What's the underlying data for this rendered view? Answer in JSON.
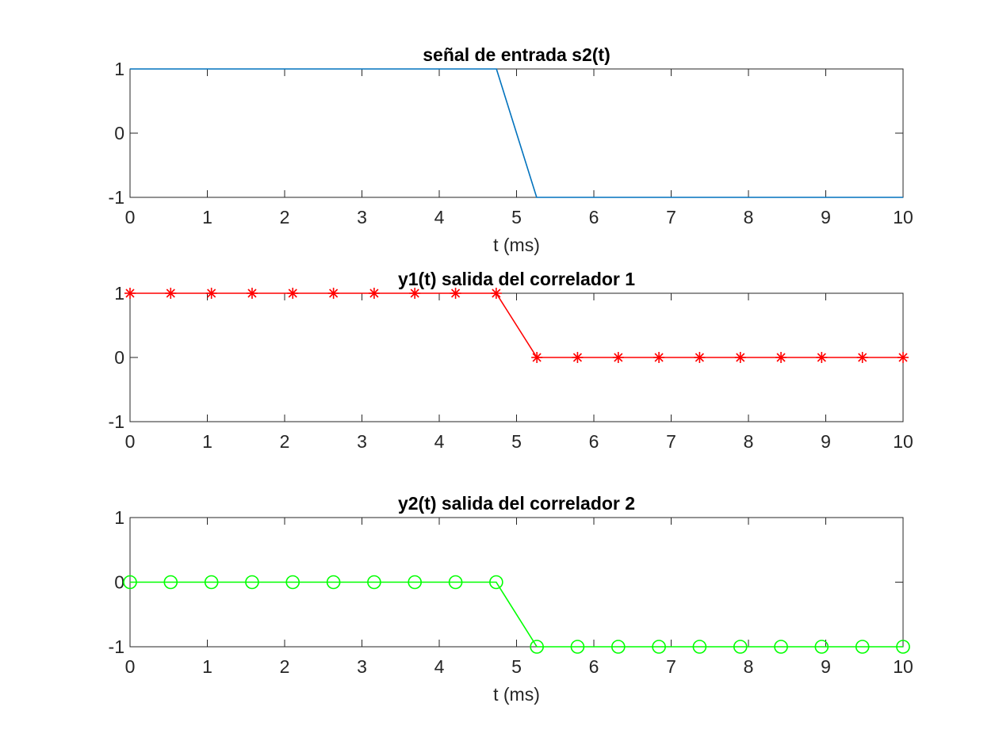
{
  "chart_data": [
    {
      "type": "line",
      "title": "señal de entrada s2(t)",
      "xlabel": "t (ms)",
      "ylabel": "",
      "xlim": [
        0,
        10
      ],
      "ylim": [
        -1,
        1
      ],
      "xticks": [
        "0",
        "1",
        "2",
        "3",
        "4",
        "5",
        "6",
        "7",
        "8",
        "9",
        "10"
      ],
      "yticks": [
        "-1",
        "0",
        "1"
      ],
      "grid": false,
      "series": [
        {
          "color": "#0072BD",
          "marker": "none",
          "x": [
            0,
            4.74,
            5.26,
            10
          ],
          "y": [
            1,
            1,
            -1,
            -1
          ]
        }
      ]
    },
    {
      "type": "line",
      "title": "y1(t) salida del correlador 1",
      "xlabel": "",
      "ylabel": "",
      "xlim": [
        0,
        10
      ],
      "ylim": [
        -1,
        1
      ],
      "xticks": [
        "0",
        "1",
        "2",
        "3",
        "4",
        "5",
        "6",
        "7",
        "8",
        "9",
        "10"
      ],
      "yticks": [
        "-1",
        "0",
        "1"
      ],
      "grid": false,
      "series": [
        {
          "color": "#FF0000",
          "marker": "asterisk",
          "x": [
            0,
            0.526,
            1.053,
            1.579,
            2.105,
            2.632,
            3.158,
            3.684,
            4.211,
            4.737,
            5.263,
            5.789,
            6.316,
            6.842,
            7.368,
            7.895,
            8.421,
            8.947,
            9.474,
            10
          ],
          "y": [
            1,
            1,
            1,
            1,
            1,
            1,
            1,
            1,
            1,
            1,
            0,
            0,
            0,
            0,
            0,
            0,
            0,
            0,
            0,
            0
          ]
        }
      ]
    },
    {
      "type": "line",
      "title": "y2(t) salida del correlador 2",
      "xlabel": "t (ms)",
      "ylabel": "",
      "xlim": [
        0,
        10
      ],
      "ylim": [
        -1,
        1
      ],
      "xticks": [
        "0",
        "1",
        "2",
        "3",
        "4",
        "5",
        "6",
        "7",
        "8",
        "9",
        "10"
      ],
      "yticks": [
        "-1",
        "0",
        "1"
      ],
      "grid": false,
      "series": [
        {
          "color": "#00FF00",
          "marker": "circle",
          "x": [
            0,
            0.526,
            1.053,
            1.579,
            2.105,
            2.632,
            3.158,
            3.684,
            4.211,
            4.737,
            5.263,
            5.789,
            6.316,
            6.842,
            7.368,
            7.895,
            8.421,
            8.947,
            9.474,
            10
          ],
          "y": [
            0,
            0,
            0,
            0,
            0,
            0,
            0,
            0,
            0,
            0,
            -1,
            -1,
            -1,
            -1,
            -1,
            -1,
            -1,
            -1,
            -1,
            -1
          ]
        }
      ]
    }
  ]
}
